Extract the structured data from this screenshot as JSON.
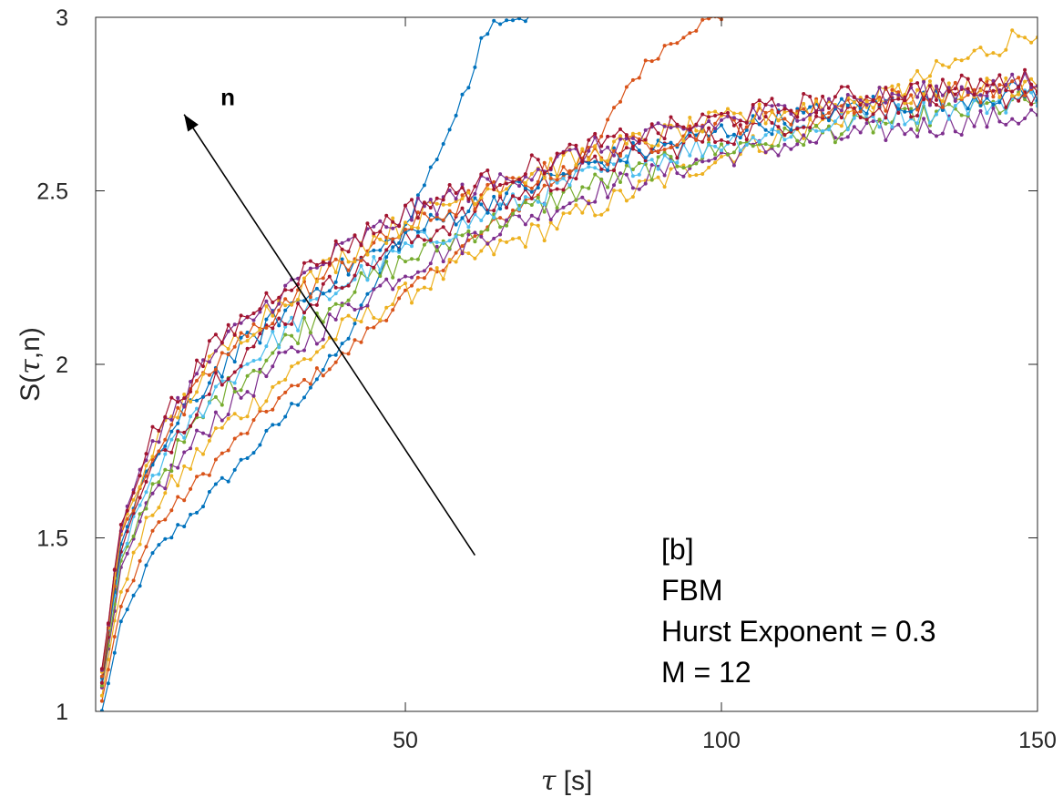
{
  "chart_data": {
    "type": "line",
    "xlabel_symbol": "τ",
    "xlabel_unit": "[s]",
    "ylabel_prefix": "S(",
    "ylabel_symbol": "τ",
    "ylabel_suffix": ",n)",
    "xlim": [
      1,
      150
    ],
    "ylim": [
      1,
      3
    ],
    "x_ticks": [
      50,
      100,
      150
    ],
    "x_tick_labels": [
      "50",
      "100",
      "150"
    ],
    "y_ticks": [
      1,
      1.5,
      2,
      2.5,
      3
    ],
    "y_tick_labels": [
      "1",
      "1.5",
      "2",
      "2.5",
      "3"
    ],
    "grid": false,
    "annotations": [
      "[b]",
      "FBM",
      "Hurst Exponent = 0.3",
      "M = 12"
    ],
    "arrow": {
      "label": "n",
      "from": [
        61,
        1.45
      ],
      "to": [
        15,
        2.72
      ]
    },
    "colors": [
      "#0072BD",
      "#D95319",
      "#EDB120",
      "#7E2F8E",
      "#77AC30",
      "#4DBEEE",
      "#A2142F"
    ],
    "series": [
      {
        "color": "#0072BD",
        "noise": 0.02,
        "x": [
          2,
          5,
          10,
          20,
          30,
          40,
          50,
          55,
          60,
          62,
          65,
          70
        ],
        "y": [
          1.0,
          1.25,
          1.45,
          1.64,
          1.83,
          2.05,
          2.4,
          2.6,
          2.8,
          2.95,
          3.0,
          3.0
        ]
      },
      {
        "color": "#D95319",
        "noise": 0.02,
        "x": [
          2,
          5,
          10,
          20,
          30,
          40,
          50,
          60,
          70,
          80,
          85,
          90,
          95,
          100
        ],
        "y": [
          1.03,
          1.3,
          1.52,
          1.72,
          1.9,
          2.02,
          2.2,
          2.35,
          2.48,
          2.62,
          2.8,
          2.9,
          2.97,
          3.0
        ]
      },
      {
        "color": "#EDB120",
        "noise": 0.035,
        "x": [
          2,
          5,
          10,
          20,
          30,
          40,
          50,
          60,
          80,
          100,
          120,
          135,
          150
        ],
        "y": [
          1.05,
          1.35,
          1.58,
          1.8,
          1.95,
          2.1,
          2.2,
          2.3,
          2.45,
          2.6,
          2.72,
          2.85,
          2.97
        ]
      },
      {
        "color": "#7E2F8E",
        "noise": 0.035,
        "x": [
          2,
          5,
          10,
          20,
          30,
          40,
          50,
          60,
          80,
          100,
          120,
          150
        ],
        "y": [
          1.06,
          1.4,
          1.62,
          1.85,
          2.0,
          2.15,
          2.27,
          2.36,
          2.5,
          2.6,
          2.66,
          2.72
        ]
      },
      {
        "color": "#77AC30",
        "noise": 0.035,
        "x": [
          2,
          5,
          10,
          20,
          30,
          40,
          50,
          60,
          80,
          100,
          120,
          150
        ],
        "y": [
          1.07,
          1.42,
          1.65,
          1.9,
          2.05,
          2.2,
          2.3,
          2.38,
          2.52,
          2.62,
          2.68,
          2.76
        ]
      },
      {
        "color": "#4DBEEE",
        "noise": 0.035,
        "x": [
          2,
          5,
          10,
          20,
          30,
          40,
          50,
          60,
          80,
          100,
          120,
          150
        ],
        "y": [
          1.08,
          1.45,
          1.68,
          1.93,
          2.08,
          2.23,
          2.33,
          2.41,
          2.55,
          2.64,
          2.7,
          2.77
        ]
      },
      {
        "color": "#A2142F",
        "noise": 0.035,
        "x": [
          2,
          5,
          10,
          20,
          30,
          40,
          50,
          60,
          80,
          100,
          120,
          150
        ],
        "y": [
          1.09,
          1.47,
          1.7,
          1.96,
          2.12,
          2.25,
          2.35,
          2.43,
          2.57,
          2.66,
          2.73,
          2.78
        ]
      },
      {
        "color": "#0072BD",
        "noise": 0.035,
        "x": [
          2,
          5,
          10,
          20,
          30,
          40,
          50,
          60,
          80,
          100,
          120,
          150
        ],
        "y": [
          1.1,
          1.48,
          1.72,
          1.98,
          2.14,
          2.27,
          2.37,
          2.45,
          2.58,
          2.67,
          2.74,
          2.79
        ]
      },
      {
        "color": "#D95319",
        "noise": 0.035,
        "x": [
          2,
          5,
          10,
          20,
          30,
          40,
          50,
          60,
          80,
          100,
          120,
          150
        ],
        "y": [
          1.1,
          1.5,
          1.74,
          2.0,
          2.16,
          2.29,
          2.39,
          2.47,
          2.6,
          2.69,
          2.75,
          2.8
        ]
      },
      {
        "color": "#EDB120",
        "noise": 0.035,
        "x": [
          2,
          5,
          10,
          20,
          30,
          40,
          50,
          60,
          80,
          100,
          120,
          150
        ],
        "y": [
          1.11,
          1.51,
          1.76,
          2.02,
          2.18,
          2.31,
          2.41,
          2.49,
          2.61,
          2.7,
          2.76,
          2.81
        ]
      },
      {
        "color": "#7E2F8E",
        "noise": 0.035,
        "x": [
          2,
          5,
          10,
          20,
          30,
          40,
          50,
          60,
          80,
          100,
          120,
          150
        ],
        "y": [
          1.12,
          1.53,
          1.78,
          2.04,
          2.2,
          2.33,
          2.43,
          2.5,
          2.62,
          2.7,
          2.76,
          2.81
        ]
      },
      {
        "color": "#A2142F",
        "noise": 0.035,
        "x": [
          2,
          5,
          10,
          20,
          30,
          40,
          50,
          60,
          80,
          100,
          120,
          150
        ],
        "y": [
          1.12,
          1.54,
          1.8,
          2.06,
          2.22,
          2.34,
          2.44,
          2.51,
          2.63,
          2.71,
          2.77,
          2.82
        ]
      }
    ]
  }
}
